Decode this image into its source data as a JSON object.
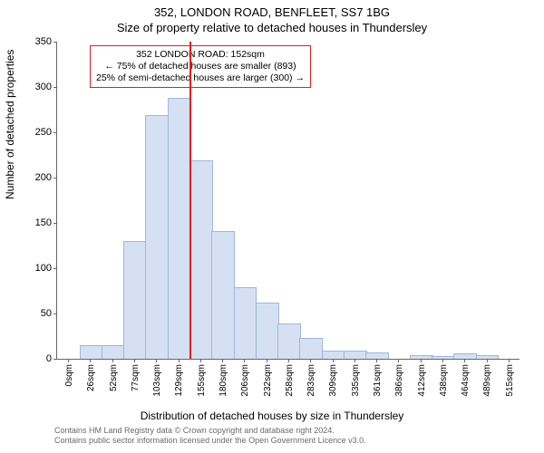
{
  "title_line1": "352, LONDON ROAD, BENFLEET, SS7 1BG",
  "title_line2": "Size of property relative to detached houses in Thundersley",
  "ylabel": "Number of detached properties",
  "xlabel": "Distribution of detached houses by size in Thundersley",
  "chart": {
    "type": "histogram",
    "ylim": [
      0,
      350
    ],
    "ytick_step": 50,
    "bar_fill": "#d5e0f3",
    "bar_stroke": "#9fb6dd",
    "background": "#ffffff",
    "categories": [
      "0sqm",
      "26sqm",
      "52sqm",
      "77sqm",
      "103sqm",
      "129sqm",
      "155sqm",
      "180sqm",
      "206sqm",
      "232sqm",
      "258sqm",
      "283sqm",
      "309sqm",
      "335sqm",
      "361sqm",
      "386sqm",
      "412sqm",
      "438sqm",
      "464sqm",
      "489sqm",
      "515sqm"
    ],
    "values": [
      0,
      14,
      14,
      129,
      268,
      287,
      218,
      140,
      78,
      61,
      38,
      22,
      8,
      8,
      6,
      0,
      3,
      2,
      5,
      3,
      0
    ],
    "reference_line": {
      "category_index": 6,
      "color": "#e02020"
    },
    "annotation": {
      "line1": "352 LONDON ROAD: 152sqm",
      "line2": "← 75% of detached houses are smaller (893)",
      "line3": "25% of semi-detached houses are larger (300) →",
      "border_color": "#e02020"
    }
  },
  "footer_line1": "Contains HM Land Registry data © Crown copyright and database right 2024.",
  "footer_line2": "Contains public sector information licensed under the Open Government Licence v3.0."
}
